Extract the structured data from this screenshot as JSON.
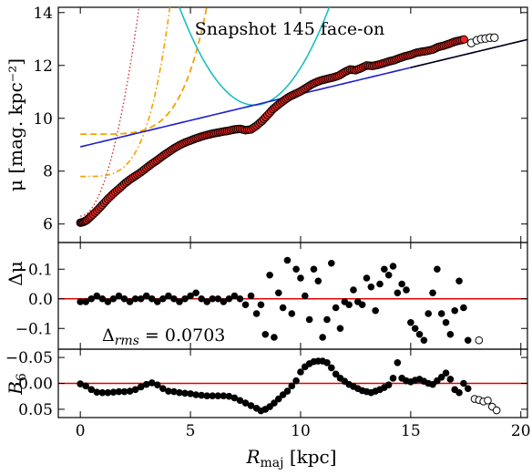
{
  "chart_data": [
    {
      "panel": "profile",
      "type": "scatter",
      "title": "Snapshot 145 face-on",
      "ylabel": "μ [mag. kpc⁻²]",
      "ylim": [
        14.2,
        5.3
      ],
      "yinverted": true,
      "xlim": [
        -1,
        20.3
      ],
      "yticks": [
        6,
        8,
        10,
        12,
        14
      ],
      "ytick_labels": [
        "6",
        "8",
        "10",
        "12",
        "14"
      ],
      "grid": false,
      "series": [
        {
          "style": "red filled circles",
          "x": [
            0.0,
            0.15,
            0.3,
            0.5,
            0.75,
            1.0,
            1.25,
            1.5,
            1.75,
            2.0,
            2.25,
            2.5,
            2.75,
            3.0,
            3.25,
            3.5,
            3.75,
            4.0,
            4.25,
            4.5,
            4.75,
            5.0,
            5.25,
            5.5,
            5.75,
            6.0,
            6.25,
            6.5,
            6.75,
            7.0,
            7.25,
            7.5,
            7.75,
            8.0,
            8.25,
            8.5,
            8.75,
            9.0,
            9.25,
            9.5,
            9.75,
            10.0,
            10.25,
            10.5,
            10.75,
            11.0,
            11.25,
            11.5,
            11.75,
            12.0,
            12.25,
            12.5,
            12.75,
            13.0,
            13.25,
            13.5,
            13.75,
            14.0,
            14.25,
            14.5,
            14.75,
            15.0,
            15.25,
            15.5,
            15.75,
            16.0,
            16.25,
            16.5,
            16.75,
            17.0,
            17.25,
            17.5
          ],
          "y": [
            6.05,
            6.08,
            6.15,
            6.3,
            6.5,
            6.72,
            6.95,
            7.15,
            7.33,
            7.52,
            7.68,
            7.82,
            7.96,
            8.12,
            8.28,
            8.42,
            8.58,
            8.72,
            8.86,
            8.98,
            9.08,
            9.16,
            9.24,
            9.31,
            9.37,
            9.42,
            9.46,
            9.5,
            9.53,
            9.58,
            9.6,
            9.55,
            9.58,
            9.72,
            9.9,
            10.12,
            10.35,
            10.52,
            10.68,
            10.82,
            10.92,
            11.02,
            11.15,
            11.28,
            11.38,
            11.45,
            11.5,
            11.55,
            11.62,
            11.75,
            11.85,
            11.82,
            11.9,
            12.0,
            11.98,
            12.02,
            12.08,
            12.15,
            12.2,
            12.28,
            12.35,
            12.4,
            12.48,
            12.52,
            12.55,
            12.6,
            12.7,
            12.75,
            12.82,
            12.9,
            12.95,
            13.0
          ]
        },
        {
          "style": "open circles",
          "x": [
            17.75,
            18.0,
            18.2,
            18.4,
            18.6,
            18.8
          ],
          "y": [
            12.85,
            12.95,
            13.0,
            13.02,
            13.05,
            13.05
          ]
        }
      ],
      "components": [
        {
          "style": "red dotted",
          "description": "central component"
        },
        {
          "style": "orange dash-dot",
          "description": "bulge component"
        },
        {
          "style": "orange dashed",
          "description": "bar component"
        },
        {
          "style": "blue solid",
          "description": "exponential disc"
        },
        {
          "style": "cyan solid",
          "description": "ring component"
        },
        {
          "style": "black solid",
          "description": "total model"
        }
      ]
    },
    {
      "panel": "residuals",
      "type": "scatter",
      "ylabel": "Δμ",
      "ylim": [
        0.19,
        -0.17
      ],
      "yinverted": true,
      "yticks": [
        -0.1,
        0.0,
        0.1
      ],
      "ytick_labels": [
        "−0.1",
        "0.0",
        "0.1"
      ],
      "annotation": "Δrms = 0.0703",
      "annotation_parts": {
        "symbol": "Δ",
        "subscript": "rms",
        "value": " = 0.0703"
      },
      "reference_line": 0.0,
      "x": [
        0.0,
        0.25,
        0.5,
        0.75,
        1.0,
        1.25,
        1.5,
        1.75,
        2.0,
        2.25,
        2.5,
        2.75,
        3.0,
        3.25,
        3.5,
        3.75,
        4.0,
        4.25,
        4.5,
        4.75,
        5.0,
        5.25,
        5.5,
        5.75,
        6.0,
        6.25,
        6.5,
        6.75,
        7.0,
        7.25,
        7.5,
        7.75,
        8.0,
        8.2,
        8.4,
        8.6,
        8.8,
        9.0,
        9.2,
        9.4,
        9.6,
        9.8,
        10.0,
        10.2,
        10.4,
        10.6,
        10.8,
        11.0,
        11.2,
        11.4,
        11.6,
        11.8,
        12.0,
        12.2,
        12.4,
        12.6,
        12.8,
        13.0,
        13.2,
        13.4,
        13.6,
        13.8,
        14.0,
        14.2,
        14.4,
        14.6,
        14.8,
        15.0,
        15.2,
        15.4,
        15.6,
        15.8,
        16.0,
        16.2,
        16.4,
        16.6,
        16.8,
        17.0,
        17.2,
        17.4,
        17.6
      ],
      "y": [
        -0.01,
        -0.01,
        0.0,
        0.01,
        0.0,
        -0.01,
        0.0,
        0.01,
        0.0,
        -0.01,
        0.0,
        0.0,
        0.01,
        0.0,
        -0.01,
        0.0,
        0.01,
        0.0,
        -0.01,
        0.0,
        0.01,
        0.02,
        0.0,
        -0.01,
        0.0,
        0.0,
        -0.01,
        0.0,
        0.01,
        0.0,
        -0.02,
        0.01,
        -0.05,
        -0.02,
        -0.12,
        0.08,
        -0.13,
        0.02,
        -0.03,
        0.13,
        -0.05,
        0.1,
        0.07,
        0.01,
        -0.07,
        0.1,
        0.06,
        -0.13,
        -0.07,
        0.12,
        -0.03,
        -0.1,
        -0.01,
        -0.02,
        0.03,
        -0.01,
        -0.02,
        0.07,
        0.04,
        -0.04,
        0.05,
        0.1,
        0.08,
        0.11,
        0.02,
        0.05,
        0.03,
        -0.08,
        -0.1,
        -0.12,
        -0.14,
        -0.05,
        0.02,
        0.1,
        -0.05,
        -0.08,
        -0.12,
        -0.04,
        0.06,
        -0.03,
        -0.14
      ]
    },
    {
      "panel": "b6",
      "type": "scatter",
      "ylabel": "B6",
      "ylabel_parts": {
        "symbol": "B",
        "subscript": "6"
      },
      "ylim": [
        -0.066,
        0.066
      ],
      "yticks": [
        0.05,
        0.0,
        -0.05
      ],
      "ytick_labels": [
        "0.05",
        "0.00",
        "−0.05"
      ],
      "xlim": [
        -1,
        20.3
      ],
      "xticks": [
        0,
        5,
        10,
        15,
        20
      ],
      "xtick_labels": [
        "0",
        "5",
        "10",
        "15",
        "20"
      ],
      "xlabel": "Rmaj [kpc]",
      "xlabel_parts": {
        "symbol": "R",
        "subscript": "maj",
        "suffix": " [kpc]"
      },
      "reference_line": 0.0,
      "x": [
        0.0,
        0.25,
        0.5,
        0.75,
        1.0,
        1.25,
        1.5,
        1.75,
        2.0,
        2.25,
        2.5,
        2.75,
        3.0,
        3.25,
        3.5,
        3.75,
        4.0,
        4.25,
        4.5,
        4.75,
        5.0,
        5.25,
        5.5,
        5.75,
        6.0,
        6.25,
        6.5,
        6.75,
        7.0,
        7.25,
        7.5,
        7.75,
        8.0,
        8.2,
        8.4,
        8.6,
        8.8,
        9.0,
        9.2,
        9.4,
        9.6,
        9.8,
        10.0,
        10.2,
        10.4,
        10.6,
        10.8,
        11.0,
        11.2,
        11.4,
        11.6,
        11.8,
        12.0,
        12.2,
        12.4,
        12.6,
        12.8,
        13.0,
        13.2,
        13.4,
        13.6,
        13.8,
        14.0,
        14.2,
        14.4,
        14.6,
        14.8,
        15.0,
        15.2,
        15.4,
        15.6,
        15.8,
        16.0,
        16.2,
        16.4,
        16.6,
        16.8,
        17.0,
        17.2,
        17.4,
        17.6
      ],
      "y": [
        0.001,
        0.005,
        0.012,
        0.017,
        0.018,
        0.018,
        0.017,
        0.016,
        0.016,
        0.015,
        0.012,
        0.007,
        0.002,
        -0.001,
        0.003,
        0.01,
        0.015,
        0.016,
        0.018,
        0.019,
        0.02,
        0.022,
        0.023,
        0.024,
        0.024,
        0.024,
        0.024,
        0.025,
        0.028,
        0.033,
        0.038,
        0.043,
        0.048,
        0.053,
        0.05,
        0.045,
        0.038,
        0.03,
        0.022,
        0.015,
        0.005,
        -0.005,
        -0.022,
        -0.032,
        -0.038,
        -0.042,
        -0.043,
        -0.043,
        -0.04,
        -0.03,
        -0.018,
        -0.01,
        -0.004,
        0.002,
        0.006,
        0.01,
        0.014,
        0.016,
        0.018,
        0.015,
        0.012,
        0.008,
        0.003,
        -0.01,
        -0.04,
        -0.01,
        -0.005,
        -0.003,
        -0.006,
        -0.008,
        -0.004,
        0.0,
        0.002,
        -0.005,
        -0.012,
        -0.02,
        -0.008,
        0.012,
        0.018,
        0.0,
        0.01
      ],
      "open_x": [
        17.9,
        18.1,
        18.3,
        18.5,
        18.7,
        18.9
      ],
      "open_y": [
        0.03,
        0.032,
        0.035,
        0.033,
        0.045,
        0.052
      ]
    }
  ]
}
